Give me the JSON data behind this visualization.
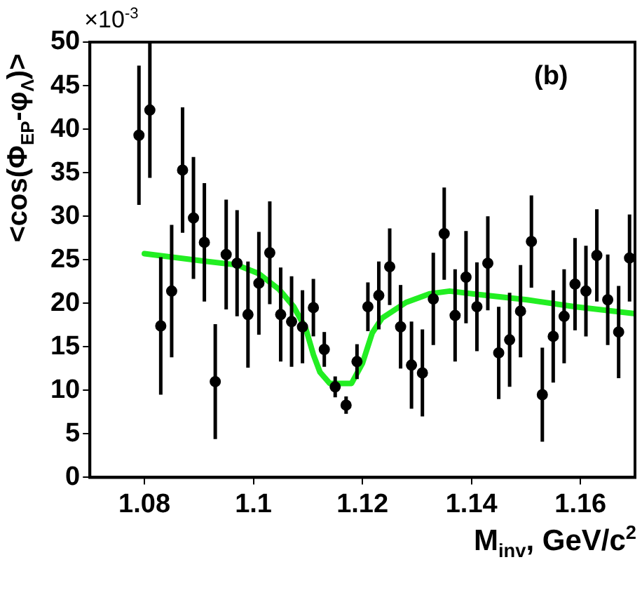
{
  "chart_data": {
    "type": "scatter",
    "xlabel": "M$_{inv}$, GeV/c$^{2}$",
    "ylabel": "<cos(Φ$_{EP}$-φ$_{Λ}$)>",
    "annotations": [
      "×10$^{-3}$",
      "(b)"
    ],
    "xlim": [
      1.07,
      1.17
    ],
    "xticks": [
      1.08,
      1.1,
      1.12,
      1.14,
      1.16
    ],
    "ylim": [
      0,
      50
    ],
    "yticks": [
      0,
      5,
      10,
      15,
      20,
      25,
      30,
      35,
      40,
      45,
      50
    ],
    "grid": false,
    "legend": false,
    "marker": "circle",
    "series": [
      {
        "color": "#000000",
        "x": [
          1.079,
          1.081,
          1.083,
          1.085,
          1.087,
          1.089,
          1.091,
          1.093,
          1.095,
          1.097,
          1.099,
          1.101,
          1.103,
          1.105,
          1.107,
          1.109,
          1.111,
          1.113,
          1.115,
          1.117,
          1.119,
          1.121,
          1.123,
          1.125,
          1.127,
          1.129,
          1.131,
          1.133,
          1.135,
          1.137,
          1.139,
          1.141,
          1.143,
          1.145,
          1.147,
          1.149,
          1.151,
          1.153,
          1.155,
          1.157,
          1.159,
          1.161,
          1.163,
          1.165,
          1.167,
          1.169
        ],
        "values": [
          39.3,
          42.2,
          17.4,
          21.4,
          35.3,
          29.8,
          27.0,
          11.0,
          25.6,
          24.6,
          18.7,
          22.3,
          25.8,
          18.7,
          17.9,
          17.3,
          19.5,
          14.7,
          10.4,
          8.3,
          13.3,
          19.6,
          20.9,
          24.2,
          17.3,
          12.9,
          12.0,
          20.5,
          28.0,
          18.6,
          23.0,
          19.6,
          24.6,
          14.3,
          15.8,
          19.1,
          27.1,
          9.5,
          16.2,
          18.5,
          22.2,
          21.4,
          25.5,
          20.4,
          16.7,
          25.2
        ],
        "errors": [
          8.0,
          7.8,
          7.9,
          7.6,
          7.2,
          7.0,
          6.8,
          6.6,
          6.3,
          6.1,
          6.1,
          5.9,
          5.9,
          5.4,
          5.2,
          4.2,
          3.3,
          2.0,
          1.2,
          1.0,
          2.0,
          2.8,
          3.9,
          4.4,
          4.8,
          5.0,
          5.0,
          5.3,
          5.3,
          5.3,
          5.3,
          5.1,
          5.4,
          5.3,
          5.4,
          5.3,
          5.3,
          5.4,
          5.3,
          5.4,
          5.3,
          5.2,
          5.3,
          5.2,
          5.3,
          5.0
        ]
      },
      {
        "type": "line",
        "marker": "none",
        "color": "#22ee22",
        "x": [
          1.08,
          1.0903,
          1.097,
          1.101,
          1.1047,
          1.1074,
          1.1096,
          1.111,
          1.1122,
          1.114,
          1.118,
          1.12,
          1.1218,
          1.1236,
          1.128,
          1.1324,
          1.136,
          1.1413,
          1.1502,
          1.1591,
          1.17
        ],
        "values": [
          25.7,
          24.9,
          24.4,
          23.4,
          21.6,
          19.6,
          17.1,
          14.1,
          12.1,
          10.8,
          10.8,
          13.1,
          16.6,
          18.3,
          20.1,
          21.1,
          21.4,
          21.0,
          20.4,
          19.6,
          18.8
        ]
      }
    ]
  }
}
